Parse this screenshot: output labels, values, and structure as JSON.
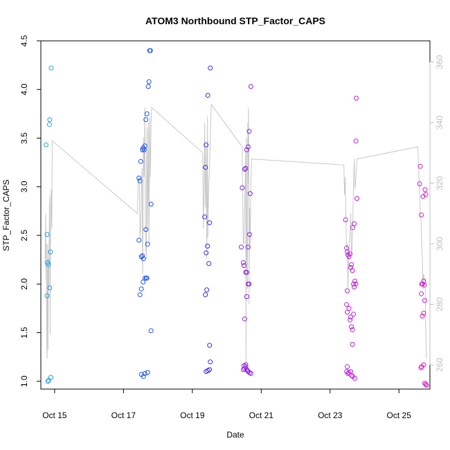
{
  "chart_data": {
    "type": "scatter",
    "title": "ATOM3 Northbound STP_Factor_CAPS",
    "xlabel": "Date",
    "ylabel": "STP_Factor_CAPS",
    "x_ticks": [
      "Oct 15",
      "Oct 17",
      "Oct 19",
      "Oct 21",
      "Oct 23",
      "Oct 25"
    ],
    "x_tick_days": [
      15,
      17,
      19,
      21,
      23,
      25
    ],
    "xlim": [
      14.6,
      25.9
    ],
    "ylim": [
      0.92,
      4.5
    ],
    "y_ticks": [
      1.0,
      1.5,
      2.0,
      2.5,
      3.0,
      3.5,
      4.0,
      4.5
    ],
    "y_right_ticks": [
      260,
      280,
      300,
      320,
      340,
      360
    ],
    "y_right_lim": [
      252,
      367
    ],
    "grid": false,
    "legend": "none",
    "colors": {
      "right_axis": "#bfbfbf",
      "line": "#c8c8c8"
    },
    "series": [
      {
        "color": "#1f9ee8",
        "points": [
          [
            14.75,
            3.43
          ],
          [
            14.78,
            2.51
          ],
          [
            14.8,
            2.22
          ],
          [
            14.82,
            2.2
          ],
          [
            14.78,
            1.88
          ],
          [
            14.8,
            1.0
          ],
          [
            14.83,
            1.01
          ],
          [
            14.86,
            3.69
          ],
          [
            14.85,
            3.64
          ],
          [
            14.88,
            2.33
          ],
          [
            14.86,
            1.96
          ],
          [
            14.9,
            4.22
          ],
          [
            14.89,
            1.04
          ]
        ]
      },
      {
        "color": "#1a55e8",
        "points": [
          [
            17.45,
            3.09
          ],
          [
            17.48,
            3.06
          ],
          [
            17.45,
            2.45
          ],
          [
            17.5,
            3.26
          ],
          [
            17.48,
            1.89
          ],
          [
            17.52,
            2.28
          ],
          [
            17.55,
            3.38
          ],
          [
            17.57,
            3.4
          ],
          [
            17.6,
            3.38
          ],
          [
            17.62,
            3.42
          ],
          [
            17.55,
            2.29
          ],
          [
            17.58,
            2.26
          ],
          [
            17.52,
            1.95
          ],
          [
            17.57,
            2.02
          ],
          [
            17.62,
            2.06
          ],
          [
            17.66,
            2.06
          ],
          [
            17.68,
            2.06
          ],
          [
            17.52,
            1.07
          ],
          [
            17.58,
            1.05
          ],
          [
            17.62,
            1.08
          ],
          [
            17.7,
            1.09
          ],
          [
            17.65,
            2.56
          ],
          [
            17.7,
            2.41
          ],
          [
            17.65,
            3.69
          ],
          [
            17.68,
            3.75
          ],
          [
            17.72,
            4.03
          ],
          [
            17.74,
            4.08
          ],
          [
            17.76,
            4.4
          ],
          [
            17.78,
            4.4
          ],
          [
            17.8,
            2.82
          ],
          [
            17.8,
            1.52
          ]
        ]
      },
      {
        "color": "#3b22e6",
        "points": [
          [
            19.36,
            2.69
          ],
          [
            19.38,
            3.2
          ],
          [
            19.4,
            3.43
          ],
          [
            19.4,
            2.32
          ],
          [
            19.38,
            1.89
          ],
          [
            19.42,
            1.94
          ],
          [
            19.44,
            2.39
          ],
          [
            19.45,
            3.94
          ],
          [
            19.48,
            2.21
          ],
          [
            19.5,
            2.63
          ],
          [
            19.5,
            1.37
          ],
          [
            19.52,
            1.2
          ],
          [
            19.4,
            1.1
          ],
          [
            19.45,
            1.11
          ],
          [
            19.5,
            1.12
          ],
          [
            19.52,
            4.22
          ]
        ]
      },
      {
        "color": "#8a22e0",
        "points": [
          [
            20.45,
            2.99
          ],
          [
            20.48,
            2.22
          ],
          [
            20.5,
            2.19
          ],
          [
            20.52,
            3.18
          ],
          [
            20.55,
            3.19
          ],
          [
            20.58,
            3.38
          ],
          [
            20.62,
            3.41
          ],
          [
            20.55,
            2.12
          ],
          [
            20.58,
            2.12
          ],
          [
            20.58,
            1.87
          ],
          [
            20.52,
            1.64
          ],
          [
            20.62,
            2.0
          ],
          [
            20.65,
            2.0
          ],
          [
            20.62,
            2.38
          ],
          [
            20.66,
            2.51
          ],
          [
            20.68,
            2.93
          ],
          [
            20.65,
            3.57
          ],
          [
            20.7,
            4.03
          ],
          [
            20.42,
            2.38
          ],
          [
            20.48,
            1.12
          ],
          [
            20.52,
            1.13
          ],
          [
            20.55,
            1.15
          ],
          [
            20.58,
            1.12
          ],
          [
            20.6,
            1.11
          ],
          [
            20.62,
            1.1
          ],
          [
            20.66,
            1.09
          ],
          [
            20.7,
            1.08
          ],
          [
            20.5,
            1.16
          ],
          [
            20.55,
            1.17
          ]
        ]
      },
      {
        "color": "#b81fd8",
        "points": [
          [
            23.45,
            2.66
          ],
          [
            23.48,
            2.37
          ],
          [
            23.5,
            2.33
          ],
          [
            23.52,
            2.3
          ],
          [
            23.55,
            2.28
          ],
          [
            23.58,
            2.31
          ],
          [
            23.6,
            2.17
          ],
          [
            23.62,
            2.2
          ],
          [
            23.65,
            2.14
          ],
          [
            23.66,
            2.58
          ],
          [
            23.7,
            2.62
          ],
          [
            23.68,
            2.0
          ],
          [
            23.7,
            1.97
          ],
          [
            23.72,
            2.03
          ],
          [
            23.75,
            2.0
          ],
          [
            23.48,
            1.79
          ],
          [
            23.5,
            1.71
          ],
          [
            23.55,
            1.75
          ],
          [
            23.58,
            1.63
          ],
          [
            23.6,
            1.66
          ],
          [
            23.62,
            1.56
          ],
          [
            23.65,
            1.53
          ],
          [
            23.68,
            1.69
          ],
          [
            23.5,
            1.93
          ],
          [
            23.65,
            1.38
          ],
          [
            23.48,
            1.1
          ],
          [
            23.52,
            1.08
          ],
          [
            23.55,
            1.09
          ],
          [
            23.6,
            1.1
          ],
          [
            23.62,
            1.06
          ],
          [
            23.66,
            1.05
          ],
          [
            23.72,
            1.03
          ],
          [
            23.5,
            1.15
          ],
          [
            23.75,
            3.47
          ],
          [
            23.78,
            2.88
          ],
          [
            23.76,
            3.91
          ]
        ]
      },
      {
        "color": "#d61cc6",
        "points": [
          [
            25.62,
            3.21
          ],
          [
            25.6,
            3.03
          ],
          [
            25.65,
            2.71
          ],
          [
            25.7,
            2.9
          ],
          [
            25.68,
            2.0
          ],
          [
            25.72,
            2.03
          ],
          [
            25.66,
            2.0
          ],
          [
            25.74,
            1.99
          ],
          [
            25.65,
            1.9
          ],
          [
            25.68,
            1.67
          ],
          [
            25.72,
            1.7
          ],
          [
            25.75,
            1.83
          ],
          [
            25.78,
            2.92
          ],
          [
            25.76,
            2.97
          ],
          [
            25.64,
            1.14
          ],
          [
            25.66,
            1.15
          ],
          [
            25.72,
            1.17
          ],
          [
            25.75,
            0.98
          ],
          [
            25.78,
            0.97
          ],
          [
            25.8,
            0.96
          ]
        ]
      }
    ],
    "line_series": {
      "axis": "right",
      "points": [
        [
          14.72,
          293
        ],
        [
          14.74,
          310
        ],
        [
          14.75,
          288
        ],
        [
          14.76,
          300
        ],
        [
          14.77,
          265
        ],
        [
          14.78,
          262
        ],
        [
          14.79,
          287
        ],
        [
          14.8,
          300
        ],
        [
          14.81,
          265
        ],
        [
          14.82,
          295
        ],
        [
          14.83,
          285
        ],
        [
          14.84,
          298
        ],
        [
          14.85,
          312
        ],
        [
          14.86,
          316
        ],
        [
          14.87,
          270
        ],
        [
          14.88,
          300
        ],
        [
          14.9,
          318
        ],
        [
          14.92,
          305
        ],
        [
          14.93,
          334
        ],
        [
          17.4,
          310
        ],
        [
          17.42,
          318
        ],
        [
          17.44,
          322
        ],
        [
          17.46,
          320
        ],
        [
          17.48,
          302
        ],
        [
          17.5,
          305
        ],
        [
          17.52,
          318
        ],
        [
          17.54,
          325
        ],
        [
          17.55,
          300
        ],
        [
          17.56,
          290
        ],
        [
          17.58,
          335
        ],
        [
          17.6,
          322
        ],
        [
          17.62,
          345
        ],
        [
          17.64,
          300
        ],
        [
          17.66,
          295
        ],
        [
          17.68,
          338
        ],
        [
          17.7,
          305
        ],
        [
          17.72,
          340
        ],
        [
          17.74,
          300
        ],
        [
          17.76,
          342
        ],
        [
          17.78,
          322
        ],
        [
          17.8,
          340
        ],
        [
          17.82,
          345
        ],
        [
          19.3,
          330
        ],
        [
          19.32,
          305
        ],
        [
          19.34,
          318
        ],
        [
          19.36,
          340
        ],
        [
          19.37,
          322
        ],
        [
          19.38,
          312
        ],
        [
          19.4,
          332
        ],
        [
          19.42,
          295
        ],
        [
          19.44,
          342
        ],
        [
          19.45,
          302
        ],
        [
          19.46,
          310
        ],
        [
          19.48,
          320
        ],
        [
          19.5,
          325
        ],
        [
          19.52,
          335
        ],
        [
          19.55,
          346
        ],
        [
          20.45,
          332
        ],
        [
          20.46,
          318
        ],
        [
          20.48,
          300
        ],
        [
          20.5,
          300
        ],
        [
          20.52,
          314
        ],
        [
          20.54,
          322
        ],
        [
          20.55,
          330
        ],
        [
          20.56,
          260
        ],
        [
          20.57,
          335
        ],
        [
          20.58,
          300
        ],
        [
          20.6,
          285
        ],
        [
          20.61,
          340
        ],
        [
          20.62,
          320
        ],
        [
          20.63,
          345
        ],
        [
          20.64,
          330
        ],
        [
          20.65,
          280
        ],
        [
          20.66,
          312
        ],
        [
          20.68,
          300
        ],
        [
          20.7,
          320
        ],
        [
          20.72,
          328
        ],
        [
          23.4,
          326
        ],
        [
          23.42,
          316
        ],
        [
          23.44,
          322
        ],
        [
          23.46,
          308
        ],
        [
          23.48,
          298
        ],
        [
          23.5,
          300
        ],
        [
          23.52,
          285
        ],
        [
          23.54,
          296
        ],
        [
          23.56,
          300
        ],
        [
          23.58,
          303
        ],
        [
          23.6,
          310
        ],
        [
          23.62,
          296
        ],
        [
          23.64,
          298
        ],
        [
          23.66,
          308
        ],
        [
          23.68,
          320
        ],
        [
          23.7,
          328
        ],
        [
          23.72,
          318
        ],
        [
          23.75,
          322
        ],
        [
          23.78,
          328
        ],
        [
          25.55,
          332
        ],
        [
          25.58,
          322
        ],
        [
          25.6,
          318
        ],
        [
          25.62,
          310
        ],
        [
          25.64,
          308
        ],
        [
          25.66,
          300
        ],
        [
          25.68,
          295
        ],
        [
          25.7,
          285
        ],
        [
          25.72,
          290
        ],
        [
          25.74,
          288
        ],
        [
          25.76,
          287
        ],
        [
          25.78,
          272
        ],
        [
          25.8,
          262
        ]
      ]
    }
  }
}
